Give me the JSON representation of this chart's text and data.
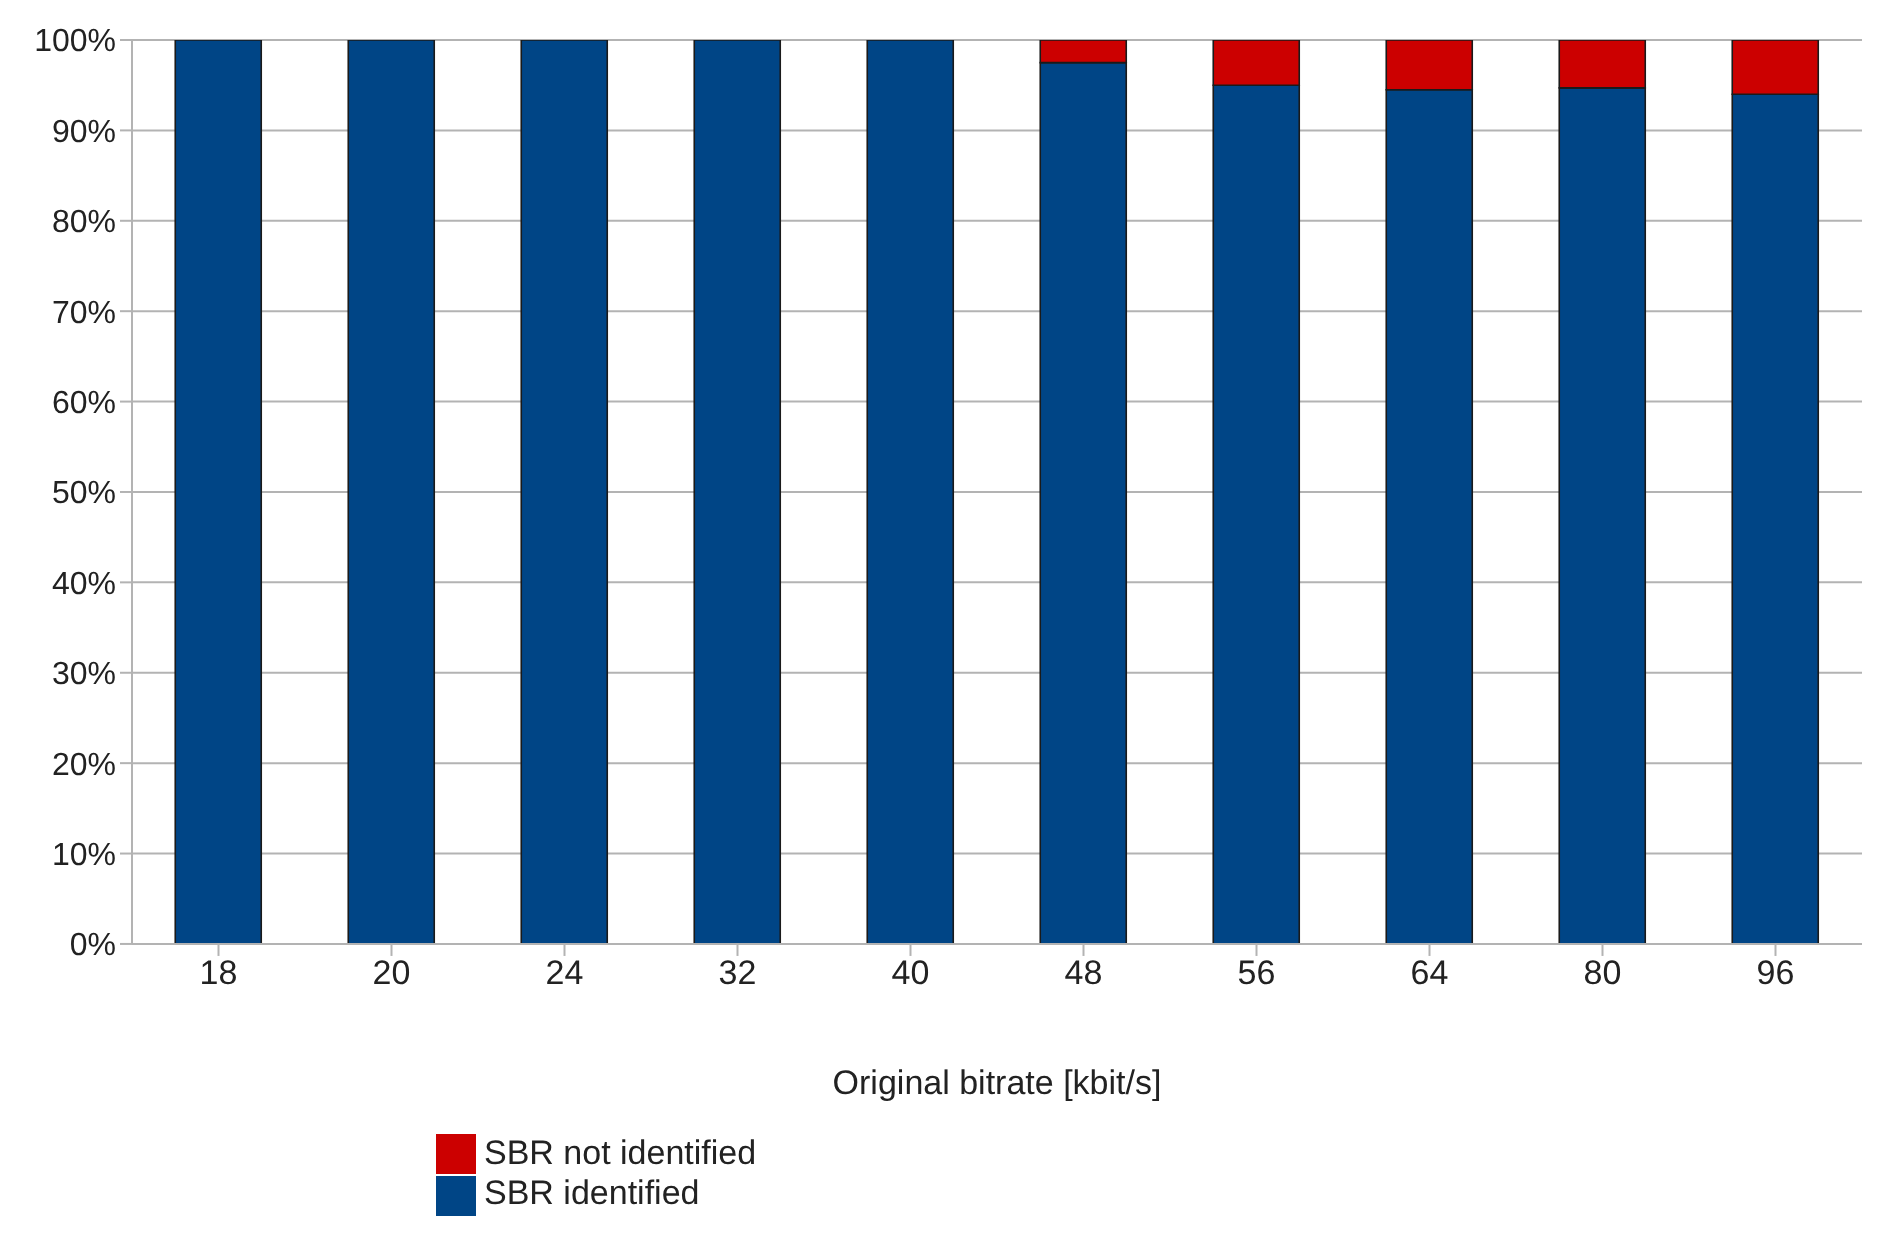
{
  "chart_data": {
    "type": "bar",
    "stacked": true,
    "xlabel": "Original bitrate [kbit/s]",
    "categories": [
      "18",
      "20",
      "24",
      "32",
      "40",
      "48",
      "56",
      "64",
      "80",
      "96"
    ],
    "series": [
      {
        "name": "SBR identified",
        "color": "#004586",
        "values": [
          100,
          100,
          100,
          100,
          100,
          97.5,
          95,
          94.5,
          94.7,
          94
        ]
      },
      {
        "name": "SBR not identified",
        "color": "#cc0000",
        "values": [
          0,
          0,
          0,
          0,
          0,
          2.5,
          5,
          5.5,
          5.3,
          6
        ]
      }
    ],
    "ylim": [
      0,
      100
    ],
    "yticks": [
      {
        "value": 0,
        "label": "0%"
      },
      {
        "value": 10,
        "label": "10%"
      },
      {
        "value": 20,
        "label": "20%"
      },
      {
        "value": 30,
        "label": "30%"
      },
      {
        "value": 40,
        "label": "40%"
      },
      {
        "value": 50,
        "label": "50%"
      },
      {
        "value": 60,
        "label": "60%"
      },
      {
        "value": 70,
        "label": "70%"
      },
      {
        "value": 80,
        "label": "80%"
      },
      {
        "value": 90,
        "label": "90%"
      },
      {
        "value": 100,
        "label": "100%"
      }
    ],
    "grid": "y",
    "legend": "bottom"
  }
}
